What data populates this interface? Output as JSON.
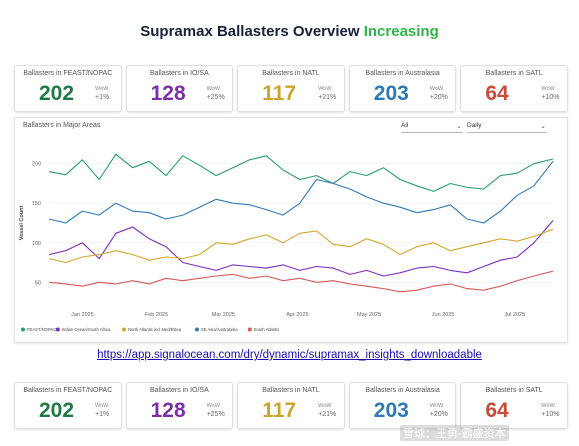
{
  "header": {
    "title_main": "Supramax Ballasters Overview ",
    "title_highlight": "Increasing"
  },
  "cards": [
    {
      "label": "Ballasters in FEAST/NOPAC",
      "value": "202",
      "wow_label": "WoW",
      "change": "+1%",
      "color": "#1f7a45"
    },
    {
      "label": "Ballasters in IO/SA",
      "value": "128",
      "wow_label": "WoW",
      "change": "+25%",
      "color": "#7b2fa8"
    },
    {
      "label": "Ballasters in NATL",
      "value": "117",
      "wow_label": "WoW",
      "change": "+21%",
      "color": "#c9a52a"
    },
    {
      "label": "Ballasters in Australasia",
      "value": "203",
      "wow_label": "WoW",
      "change": "+20%",
      "color": "#2f79b4"
    },
    {
      "label": "Ballasters in SATL",
      "value": "64",
      "wow_label": "WoW",
      "change": "+10%",
      "color": "#c94b3a"
    }
  ],
  "filters": {
    "region": "All",
    "period": "Daily"
  },
  "link": {
    "text": "https://app.signalocean.com/dry/dynamic/supramax_insights_downloadable"
  },
  "watermark": {
    "text": "雪球：王勇-霸盛资本"
  },
  "chart_data": {
    "type": "line",
    "title": "Ballasters in Major Areas",
    "ylabel": "Vessel Count",
    "xlabel": "",
    "ylim": [
      20,
      230
    ],
    "yticks": [
      50,
      100,
      150,
      200
    ],
    "x_range": [
      "2025-01-01",
      "2025-07-31"
    ],
    "x_ticks": [
      {
        "date": "2025-01-15",
        "label": "Jan 2025"
      },
      {
        "date": "2025-02-15",
        "label": "Feb 2025"
      },
      {
        "date": "2025-03-15",
        "label": "Mar 2025"
      },
      {
        "date": "2025-04-15",
        "label": "Apr 2025"
      },
      {
        "date": "2025-05-15",
        "label": "May 2025"
      },
      {
        "date": "2025-06-15",
        "label": "Jun 2025"
      },
      {
        "date": "2025-07-15",
        "label": "Jul 2025"
      }
    ],
    "grid": true,
    "legend_position": "bottom-left",
    "series": [
      {
        "name": "FEAST/NOPAC",
        "color": "#2a9d6f",
        "points": [
          [
            "2025-01-01",
            190
          ],
          [
            "2025-01-08",
            186
          ],
          [
            "2025-01-15",
            205
          ],
          [
            "2025-01-22",
            180
          ],
          [
            "2025-01-29",
            212
          ],
          [
            "2025-02-05",
            195
          ],
          [
            "2025-02-12",
            203
          ],
          [
            "2025-02-19",
            185
          ],
          [
            "2025-02-26",
            210
          ],
          [
            "2025-03-05",
            198
          ],
          [
            "2025-03-12",
            185
          ],
          [
            "2025-03-19",
            195
          ],
          [
            "2025-03-26",
            205
          ],
          [
            "2025-04-02",
            210
          ],
          [
            "2025-04-09",
            192
          ],
          [
            "2025-04-16",
            180
          ],
          [
            "2025-04-23",
            185
          ],
          [
            "2025-04-30",
            175
          ],
          [
            "2025-05-07",
            190
          ],
          [
            "2025-05-14",
            185
          ],
          [
            "2025-05-21",
            195
          ],
          [
            "2025-05-28",
            180
          ],
          [
            "2025-06-04",
            172
          ],
          [
            "2025-06-11",
            165
          ],
          [
            "2025-06-18",
            175
          ],
          [
            "2025-06-25",
            170
          ],
          [
            "2025-07-02",
            168
          ],
          [
            "2025-07-09",
            185
          ],
          [
            "2025-07-16",
            188
          ],
          [
            "2025-07-23",
            200
          ],
          [
            "2025-07-31",
            206
          ]
        ]
      },
      {
        "name": "Indian Ocean/South Africa",
        "color": "#7b2fbf",
        "points": [
          [
            "2025-01-01",
            85
          ],
          [
            "2025-01-08",
            90
          ],
          [
            "2025-01-15",
            100
          ],
          [
            "2025-01-22",
            80
          ],
          [
            "2025-01-29",
            112
          ],
          [
            "2025-02-05",
            120
          ],
          [
            "2025-02-12",
            105
          ],
          [
            "2025-02-19",
            95
          ],
          [
            "2025-02-26",
            75
          ],
          [
            "2025-03-05",
            70
          ],
          [
            "2025-03-12",
            65
          ],
          [
            "2025-03-19",
            72
          ],
          [
            "2025-03-26",
            70
          ],
          [
            "2025-04-02",
            68
          ],
          [
            "2025-04-09",
            72
          ],
          [
            "2025-04-16",
            65
          ],
          [
            "2025-04-23",
            70
          ],
          [
            "2025-04-30",
            68
          ],
          [
            "2025-05-07",
            60
          ],
          [
            "2025-05-14",
            65
          ],
          [
            "2025-05-21",
            58
          ],
          [
            "2025-05-28",
            62
          ],
          [
            "2025-06-04",
            68
          ],
          [
            "2025-06-11",
            70
          ],
          [
            "2025-06-18",
            65
          ],
          [
            "2025-06-25",
            62
          ],
          [
            "2025-07-02",
            70
          ],
          [
            "2025-07-09",
            78
          ],
          [
            "2025-07-16",
            82
          ],
          [
            "2025-07-23",
            100
          ],
          [
            "2025-07-31",
            128
          ]
        ]
      },
      {
        "name": "North Atlantic incl Med/BSea",
        "color": "#d4a72c",
        "points": [
          [
            "2025-01-01",
            80
          ],
          [
            "2025-01-08",
            75
          ],
          [
            "2025-01-15",
            82
          ],
          [
            "2025-01-22",
            85
          ],
          [
            "2025-01-29",
            90
          ],
          [
            "2025-02-05",
            85
          ],
          [
            "2025-02-12",
            78
          ],
          [
            "2025-02-19",
            82
          ],
          [
            "2025-02-26",
            80
          ],
          [
            "2025-03-05",
            85
          ],
          [
            "2025-03-12",
            100
          ],
          [
            "2025-03-19",
            98
          ],
          [
            "2025-03-26",
            105
          ],
          [
            "2025-04-02",
            110
          ],
          [
            "2025-04-09",
            100
          ],
          [
            "2025-04-16",
            112
          ],
          [
            "2025-04-23",
            115
          ],
          [
            "2025-04-30",
            98
          ],
          [
            "2025-05-07",
            95
          ],
          [
            "2025-05-14",
            105
          ],
          [
            "2025-05-21",
            98
          ],
          [
            "2025-05-28",
            85
          ],
          [
            "2025-06-04",
            95
          ],
          [
            "2025-06-11",
            100
          ],
          [
            "2025-06-18",
            90
          ],
          [
            "2025-06-25",
            95
          ],
          [
            "2025-07-02",
            100
          ],
          [
            "2025-07-09",
            105
          ],
          [
            "2025-07-16",
            102
          ],
          [
            "2025-07-23",
            108
          ],
          [
            "2025-07-31",
            117
          ]
        ]
      },
      {
        "name": "SE Asia/Australasia",
        "color": "#2f79b4",
        "points": [
          [
            "2025-01-01",
            130
          ],
          [
            "2025-01-08",
            125
          ],
          [
            "2025-01-15",
            140
          ],
          [
            "2025-01-22",
            135
          ],
          [
            "2025-01-29",
            150
          ],
          [
            "2025-02-05",
            140
          ],
          [
            "2025-02-12",
            138
          ],
          [
            "2025-02-19",
            130
          ],
          [
            "2025-02-26",
            135
          ],
          [
            "2025-03-05",
            145
          ],
          [
            "2025-03-12",
            155
          ],
          [
            "2025-03-19",
            150
          ],
          [
            "2025-03-26",
            148
          ],
          [
            "2025-04-02",
            142
          ],
          [
            "2025-04-09",
            135
          ],
          [
            "2025-04-16",
            150
          ],
          [
            "2025-04-23",
            180
          ],
          [
            "2025-04-30",
            175
          ],
          [
            "2025-05-07",
            168
          ],
          [
            "2025-05-14",
            158
          ],
          [
            "2025-05-21",
            150
          ],
          [
            "2025-05-28",
            145
          ],
          [
            "2025-06-04",
            138
          ],
          [
            "2025-06-11",
            142
          ],
          [
            "2025-06-18",
            148
          ],
          [
            "2025-06-25",
            130
          ],
          [
            "2025-07-02",
            125
          ],
          [
            "2025-07-09",
            140
          ],
          [
            "2025-07-16",
            160
          ],
          [
            "2025-07-23",
            172
          ],
          [
            "2025-07-31",
            203
          ]
        ]
      },
      {
        "name": "South Atlantic",
        "color": "#d65a5a",
        "points": [
          [
            "2025-01-01",
            50
          ],
          [
            "2025-01-08",
            48
          ],
          [
            "2025-01-15",
            45
          ],
          [
            "2025-01-22",
            50
          ],
          [
            "2025-01-29",
            48
          ],
          [
            "2025-02-05",
            52
          ],
          [
            "2025-02-12",
            48
          ],
          [
            "2025-02-19",
            55
          ],
          [
            "2025-02-26",
            52
          ],
          [
            "2025-03-05",
            55
          ],
          [
            "2025-03-12",
            58
          ],
          [
            "2025-03-19",
            60
          ],
          [
            "2025-03-26",
            55
          ],
          [
            "2025-04-02",
            58
          ],
          [
            "2025-04-09",
            52
          ],
          [
            "2025-04-16",
            55
          ],
          [
            "2025-04-23",
            50
          ],
          [
            "2025-04-30",
            52
          ],
          [
            "2025-05-07",
            48
          ],
          [
            "2025-05-14",
            45
          ],
          [
            "2025-05-21",
            42
          ],
          [
            "2025-05-28",
            38
          ],
          [
            "2025-06-04",
            40
          ],
          [
            "2025-06-11",
            45
          ],
          [
            "2025-06-18",
            48
          ],
          [
            "2025-06-25",
            42
          ],
          [
            "2025-07-02",
            40
          ],
          [
            "2025-07-09",
            45
          ],
          [
            "2025-07-16",
            52
          ],
          [
            "2025-07-23",
            58
          ],
          [
            "2025-07-31",
            64
          ]
        ]
      }
    ]
  }
}
